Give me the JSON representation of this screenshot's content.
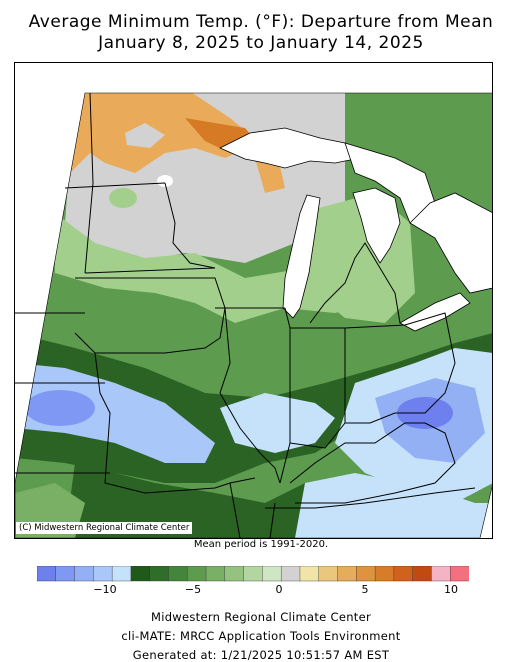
{
  "title_line1": "Average Minimum Temp. (°F): Departure from Mean",
  "title_line2": "January 8, 2025 to January 14, 2025",
  "copyright": "(C) Midwestern Regional Climate Center",
  "mean_period": "Mean period is 1991-2020.",
  "legend": {
    "colors": [
      "#6e7fee",
      "#7f98f3",
      "#93b0f5",
      "#a9c7f8",
      "#c6e2fb",
      "#1f5a1a",
      "#2f6e28",
      "#43853a",
      "#5d9b4f",
      "#79b066",
      "#96c280",
      "#b3d6a0",
      "#cfe6c4",
      "#d2d2d2",
      "#f1e4a8",
      "#ebc77d",
      "#e5ad5a",
      "#df933e",
      "#d97c2a",
      "#d0621c",
      "#c04a10",
      "#f5b3c6",
      "#f5707f"
    ],
    "ticks": [
      "−10",
      "−5",
      "0",
      "5",
      "10"
    ]
  },
  "footer": {
    "line1": "Midwestern Regional Climate Center",
    "line2": "cli-MATE: MRCC Application Tools Environment",
    "line3": "Generated at: 1/21/2025 10:51:57 AM EST"
  },
  "colors": {
    "warm": "#e9ab5a",
    "warm_dark": "#d77a26",
    "neutral": "#d2d2d2",
    "light_green": "#a3cf8c",
    "mid_green": "#5d9b4f",
    "dark_green": "#2a6323",
    "light_blue": "#c6e2fb",
    "blue": "#8fb0f5",
    "deep_blue": "#6e7fee"
  }
}
